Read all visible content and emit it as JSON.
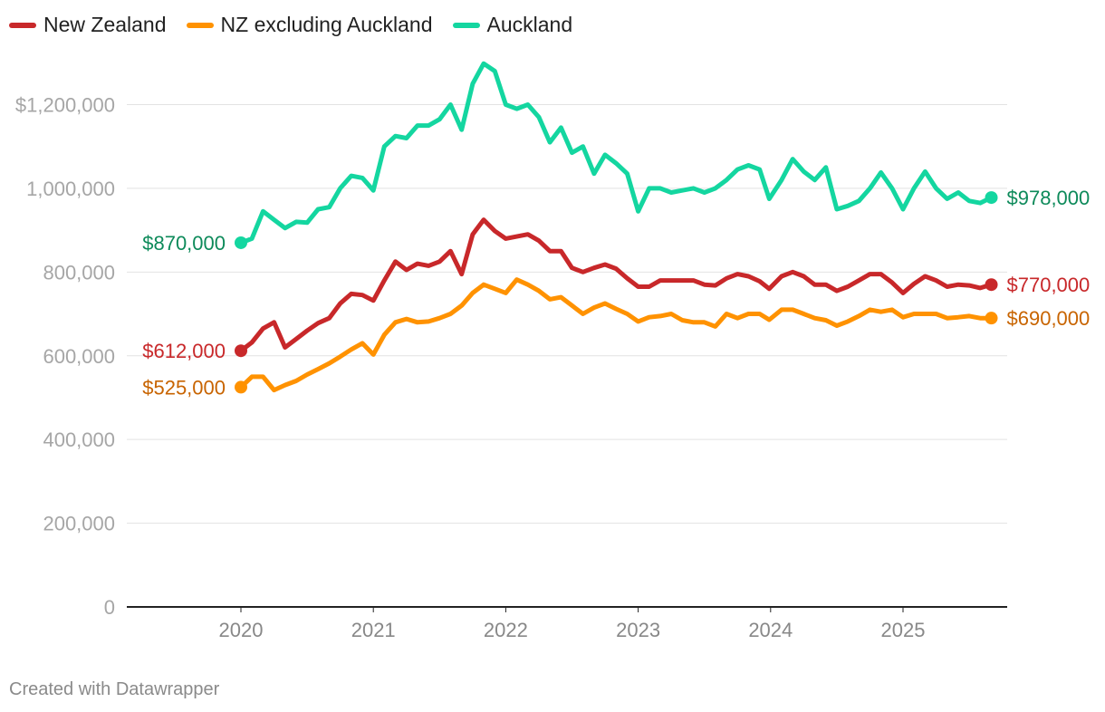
{
  "chart_data": {
    "type": "line",
    "title": "",
    "xlabel": "",
    "ylabel": "",
    "ylim": [
      0,
      1300000
    ],
    "xlim": [
      2019.3,
      2025.95
    ],
    "grid": true,
    "legend_position": "top-left",
    "y_ticks": [
      {
        "value": 0,
        "label": "0"
      },
      {
        "value": 200000,
        "label": "200,000"
      },
      {
        "value": 400000,
        "label": "400,000"
      },
      {
        "value": 600000,
        "label": "600,000"
      },
      {
        "value": 800000,
        "label": "800,000"
      },
      {
        "value": 1000000,
        "label": "1,000,000"
      },
      {
        "value": 1200000,
        "label": "$1,200,000"
      }
    ],
    "x_ticks": [
      {
        "value": 2020,
        "label": "2020"
      },
      {
        "value": 2021,
        "label": "2021"
      },
      {
        "value": 2022,
        "label": "2022"
      },
      {
        "value": 2023,
        "label": "2023"
      },
      {
        "value": 2024,
        "label": "2024"
      },
      {
        "value": 2025,
        "label": "2025"
      }
    ],
    "series": [
      {
        "name": "Auckland",
        "color": "#14d6a0",
        "label_color": "#0d8a5a",
        "start_label": "$870,000",
        "end_label": "$978,000",
        "values": [
          [
            2020.0,
            870000
          ],
          [
            2020.083,
            880000
          ],
          [
            2020.167,
            945000
          ],
          [
            2020.25,
            925000
          ],
          [
            2020.333,
            905000
          ],
          [
            2020.417,
            920000
          ],
          [
            2020.5,
            918000
          ],
          [
            2020.583,
            950000
          ],
          [
            2020.667,
            955000
          ],
          [
            2020.75,
            1000000
          ],
          [
            2020.833,
            1030000
          ],
          [
            2020.917,
            1025000
          ],
          [
            2021.0,
            995000
          ],
          [
            2021.083,
            1100000
          ],
          [
            2021.167,
            1125000
          ],
          [
            2021.25,
            1120000
          ],
          [
            2021.333,
            1150000
          ],
          [
            2021.417,
            1150000
          ],
          [
            2021.5,
            1165000
          ],
          [
            2021.583,
            1200000
          ],
          [
            2021.667,
            1140000
          ],
          [
            2021.75,
            1250000
          ],
          [
            2021.833,
            1298000
          ],
          [
            2021.917,
            1280000
          ],
          [
            2022.0,
            1200000
          ],
          [
            2022.083,
            1190000
          ],
          [
            2022.167,
            1200000
          ],
          [
            2022.25,
            1170000
          ],
          [
            2022.333,
            1110000
          ],
          [
            2022.417,
            1145000
          ],
          [
            2022.5,
            1085000
          ],
          [
            2022.583,
            1100000
          ],
          [
            2022.667,
            1035000
          ],
          [
            2022.75,
            1080000
          ],
          [
            2022.833,
            1060000
          ],
          [
            2022.917,
            1035000
          ],
          [
            2023.0,
            945000
          ],
          [
            2023.083,
            1000000
          ],
          [
            2023.167,
            1000000
          ],
          [
            2023.25,
            990000
          ],
          [
            2023.333,
            995000
          ],
          [
            2023.417,
            1000000
          ],
          [
            2023.5,
            990000
          ],
          [
            2023.583,
            1000000
          ],
          [
            2023.667,
            1020000
          ],
          [
            2023.75,
            1045000
          ],
          [
            2023.833,
            1055000
          ],
          [
            2023.917,
            1045000
          ],
          [
            2023.99,
            975000
          ],
          [
            2024.083,
            1020000
          ],
          [
            2024.167,
            1070000
          ],
          [
            2024.25,
            1040000
          ],
          [
            2024.333,
            1020000
          ],
          [
            2024.417,
            1050000
          ],
          [
            2024.5,
            950000
          ],
          [
            2024.583,
            958000
          ],
          [
            2024.667,
            970000
          ],
          [
            2024.75,
            1000000
          ],
          [
            2024.833,
            1038000
          ],
          [
            2024.917,
            1000000
          ],
          [
            2025.0,
            950000
          ],
          [
            2025.083,
            1000000
          ],
          [
            2025.167,
            1040000
          ],
          [
            2025.25,
            1000000
          ],
          [
            2025.333,
            975000
          ],
          [
            2025.417,
            990000
          ],
          [
            2025.5,
            970000
          ],
          [
            2025.583,
            965000
          ],
          [
            2025.667,
            978000
          ]
        ]
      },
      {
        "name": "New Zealand",
        "color": "#c8282a",
        "label_color": "#c8282a",
        "start_label": "$612,000",
        "end_label": "$770,000",
        "values": [
          [
            2020.0,
            612000
          ],
          [
            2020.083,
            632000
          ],
          [
            2020.167,
            665000
          ],
          [
            2020.25,
            680000
          ],
          [
            2020.333,
            620000
          ],
          [
            2020.417,
            640000
          ],
          [
            2020.5,
            660000
          ],
          [
            2020.583,
            678000
          ],
          [
            2020.667,
            690000
          ],
          [
            2020.75,
            725000
          ],
          [
            2020.833,
            748000
          ],
          [
            2020.917,
            745000
          ],
          [
            2021.0,
            732000
          ],
          [
            2021.083,
            780000
          ],
          [
            2021.167,
            825000
          ],
          [
            2021.25,
            805000
          ],
          [
            2021.333,
            820000
          ],
          [
            2021.417,
            815000
          ],
          [
            2021.5,
            825000
          ],
          [
            2021.583,
            850000
          ],
          [
            2021.667,
            795000
          ],
          [
            2021.75,
            890000
          ],
          [
            2021.833,
            925000
          ],
          [
            2021.917,
            898000
          ],
          [
            2022.0,
            880000
          ],
          [
            2022.083,
            885000
          ],
          [
            2022.167,
            890000
          ],
          [
            2022.25,
            875000
          ],
          [
            2022.333,
            850000
          ],
          [
            2022.417,
            850000
          ],
          [
            2022.5,
            810000
          ],
          [
            2022.583,
            800000
          ],
          [
            2022.667,
            810000
          ],
          [
            2022.75,
            818000
          ],
          [
            2022.833,
            808000
          ],
          [
            2022.917,
            785000
          ],
          [
            2023.0,
            765000
          ],
          [
            2023.083,
            765000
          ],
          [
            2023.167,
            780000
          ],
          [
            2023.25,
            780000
          ],
          [
            2023.333,
            780000
          ],
          [
            2023.417,
            780000
          ],
          [
            2023.5,
            770000
          ],
          [
            2023.583,
            768000
          ],
          [
            2023.667,
            785000
          ],
          [
            2023.75,
            795000
          ],
          [
            2023.833,
            790000
          ],
          [
            2023.917,
            778000
          ],
          [
            2023.99,
            760000
          ],
          [
            2024.083,
            790000
          ],
          [
            2024.167,
            800000
          ],
          [
            2024.25,
            790000
          ],
          [
            2024.333,
            770000
          ],
          [
            2024.417,
            770000
          ],
          [
            2024.5,
            755000
          ],
          [
            2024.583,
            765000
          ],
          [
            2024.667,
            780000
          ],
          [
            2024.75,
            795000
          ],
          [
            2024.833,
            795000
          ],
          [
            2024.917,
            775000
          ],
          [
            2025.0,
            750000
          ],
          [
            2025.083,
            772000
          ],
          [
            2025.167,
            790000
          ],
          [
            2025.25,
            780000
          ],
          [
            2025.333,
            765000
          ],
          [
            2025.417,
            770000
          ],
          [
            2025.5,
            768000
          ],
          [
            2025.583,
            762000
          ],
          [
            2025.667,
            770000
          ]
        ]
      },
      {
        "name": "NZ excluding Auckland",
        "color": "#ff9200",
        "label_color": "#c86400",
        "start_label": "$525,000",
        "end_label": "$690,000",
        "values": [
          [
            2020.0,
            525000
          ],
          [
            2020.083,
            550000
          ],
          [
            2020.167,
            550000
          ],
          [
            2020.25,
            518000
          ],
          [
            2020.333,
            530000
          ],
          [
            2020.417,
            540000
          ],
          [
            2020.5,
            555000
          ],
          [
            2020.583,
            568000
          ],
          [
            2020.667,
            582000
          ],
          [
            2020.75,
            598000
          ],
          [
            2020.833,
            615000
          ],
          [
            2020.917,
            630000
          ],
          [
            2021.0,
            603000
          ],
          [
            2021.083,
            650000
          ],
          [
            2021.167,
            680000
          ],
          [
            2021.25,
            688000
          ],
          [
            2021.333,
            680000
          ],
          [
            2021.417,
            682000
          ],
          [
            2021.5,
            690000
          ],
          [
            2021.583,
            700000
          ],
          [
            2021.667,
            720000
          ],
          [
            2021.75,
            750000
          ],
          [
            2021.833,
            770000
          ],
          [
            2021.917,
            760000
          ],
          [
            2022.0,
            750000
          ],
          [
            2022.083,
            782000
          ],
          [
            2022.167,
            770000
          ],
          [
            2022.25,
            755000
          ],
          [
            2022.333,
            735000
          ],
          [
            2022.417,
            740000
          ],
          [
            2022.5,
            720000
          ],
          [
            2022.583,
            700000
          ],
          [
            2022.667,
            715000
          ],
          [
            2022.75,
            725000
          ],
          [
            2022.833,
            712000
          ],
          [
            2022.917,
            700000
          ],
          [
            2023.0,
            682000
          ],
          [
            2023.083,
            692000
          ],
          [
            2023.167,
            695000
          ],
          [
            2023.25,
            700000
          ],
          [
            2023.333,
            685000
          ],
          [
            2023.417,
            680000
          ],
          [
            2023.5,
            680000
          ],
          [
            2023.583,
            670000
          ],
          [
            2023.667,
            700000
          ],
          [
            2023.75,
            690000
          ],
          [
            2023.833,
            700000
          ],
          [
            2023.917,
            700000
          ],
          [
            2023.99,
            686000
          ],
          [
            2024.083,
            710000
          ],
          [
            2024.167,
            710000
          ],
          [
            2024.25,
            700000
          ],
          [
            2024.333,
            690000
          ],
          [
            2024.417,
            685000
          ],
          [
            2024.5,
            672000
          ],
          [
            2024.583,
            682000
          ],
          [
            2024.667,
            695000
          ],
          [
            2024.75,
            710000
          ],
          [
            2024.833,
            705000
          ],
          [
            2024.917,
            710000
          ],
          [
            2025.0,
            692000
          ],
          [
            2025.083,
            700000
          ],
          [
            2025.167,
            700000
          ],
          [
            2025.25,
            700000
          ],
          [
            2025.333,
            690000
          ],
          [
            2025.417,
            692000
          ],
          [
            2025.5,
            695000
          ],
          [
            2025.583,
            690000
          ],
          [
            2025.667,
            690000
          ]
        ]
      }
    ]
  },
  "legend": {
    "items": [
      {
        "label": "New Zealand",
        "color": "#c8282a"
      },
      {
        "label": "NZ excluding Auckland",
        "color": "#ff9200"
      },
      {
        "label": "Auckland",
        "color": "#14d6a0"
      }
    ]
  },
  "footer": {
    "text": "Created with Datawrapper"
  }
}
